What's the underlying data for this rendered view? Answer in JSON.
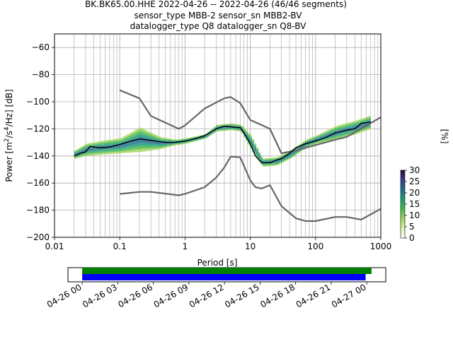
{
  "chart_data": {
    "type": "psd-histogram",
    "title": [
      "BK.BK65.00.HHE   2022-04-26 -- 2022-04-26  (46/46 segments)",
      "sensor_type MBB-2 sensor_sn MBB2-BV",
      "datalogger_type Q8 datalogger_sn Q8-BV"
    ],
    "xlabel": "Period [s]",
    "ylabel": "Power [m²/s⁴/Hz] [dB]",
    "xscale": "log",
    "xlim": [
      0.01,
      1000
    ],
    "ylim": [
      -200,
      -50
    ],
    "grid": true,
    "x_tick_labels": [
      "0.01",
      "0.1",
      "1",
      "10",
      "100",
      "1000"
    ],
    "y_ticks": [
      -200,
      -180,
      -160,
      -140,
      -120,
      -100,
      -80,
      -60
    ],
    "colorbar": {
      "label": "[%]",
      "range": [
        0,
        30
      ],
      "ticks": [
        0,
        5,
        10,
        15,
        20,
        25,
        30
      ],
      "colors": [
        "#ffffff",
        "#d9f0a3",
        "#9fd65a",
        "#47b74a",
        "#1b9e77",
        "#1f6f8b",
        "#3b3f8f",
        "#2a0a3d"
      ]
    },
    "series": [
      {
        "name": "",
        "color": "#666666",
        "x": [
          0.1,
          0.2,
          0.3,
          0.8,
          1.0,
          2.0,
          4.0,
          5.0,
          7.0,
          10.0,
          20.0,
          30.0,
          50.0,
          100.0,
          200.0,
          300.0,
          1000.0
        ],
        "y": [
          -91.5,
          -97.5,
          -110.5,
          -120,
          -117.5,
          -105,
          -97.5,
          -96.5,
          -101,
          -113.5,
          -120,
          -138,
          -136,
          -132,
          -128,
          -126,
          -111.5
        ]
      },
      {
        "name": "",
        "color": "#666666",
        "x": [
          0.1,
          0.2,
          0.3,
          0.8,
          1.0,
          2.0,
          3.0,
          4.0,
          5.0,
          7.0,
          10.0,
          12.0,
          15.0,
          20.0,
          30.0,
          50.0,
          70.0,
          100.0,
          200.0,
          300.0,
          500.0,
          1000.0
        ],
        "y": [
          -168,
          -166.5,
          -166.5,
          -169,
          -168,
          -163,
          -156,
          -148.5,
          -140.5,
          -141,
          -158,
          -163,
          -164,
          -161.5,
          -177,
          -186,
          -188,
          -188,
          -185,
          -185,
          -187,
          -179
        ]
      },
      {
        "name": "",
        "color": "#000000",
        "x": [
          0.02,
          0.025,
          0.03,
          0.035,
          0.05,
          0.07,
          0.1,
          0.15,
          0.2,
          0.3,
          0.5,
          0.7,
          1.0,
          1.5,
          2.0,
          3.0,
          4.0,
          5.0,
          6.0,
          7.0,
          8.0,
          10.0,
          12.0,
          15.0,
          20.0,
          25.0,
          30.0,
          40.0,
          50.0,
          70.0,
          100.0,
          150.0,
          200.0,
          300.0,
          400.0,
          500.0,
          700.0
        ],
        "y": [
          -140,
          -138,
          -137,
          -133,
          -134,
          -133.5,
          -131.5,
          -129,
          -127.5,
          -128.5,
          -130,
          -130,
          -129,
          -127,
          -125,
          -120,
          -118,
          -118.5,
          -119,
          -119,
          -123,
          -131,
          -140,
          -145,
          -145,
          -143,
          -142,
          -138,
          -134,
          -131,
          -129,
          -126,
          -123,
          -121,
          -120,
          -116,
          -115
        ]
      }
    ],
    "histogram_hot_band": {
      "x": [
        0.02,
        0.03,
        0.05,
        0.1,
        0.2,
        0.4,
        0.7,
        1.0,
        2.0,
        3.0,
        5.0,
        7.0,
        10.0,
        15.0,
        25.0,
        40.0,
        70.0,
        100.0,
        200.0,
        400.0,
        700.0
      ],
      "y_low": [
        -142,
        -140,
        -139,
        -138,
        -137,
        -135,
        -132,
        -131,
        -127,
        -122,
        -121,
        -122,
        -135,
        -148,
        -147,
        -142,
        -134,
        -131,
        -128,
        -124,
        -120
      ],
      "y_high": [
        -136,
        -131,
        -129,
        -127,
        -119,
        -126,
        -128,
        -127,
        -124,
        -117,
        -116,
        -117,
        -125,
        -142,
        -141,
        -136,
        -128,
        -125,
        -118,
        -114,
        -110
      ]
    },
    "segment_bars": {
      "x_tick_labels": [
        "04-26 00",
        "04-26 03",
        "04-26 06",
        "04-26 09",
        "04-26 12",
        "04-26 15",
        "04-26 18",
        "04-26 21",
        "04-27 00"
      ],
      "x_range_hours": [
        -1.2,
        25.6
      ],
      "green_hours": [
        0,
        24.4
      ],
      "blue_hours": [
        0,
        23.9
      ]
    }
  }
}
